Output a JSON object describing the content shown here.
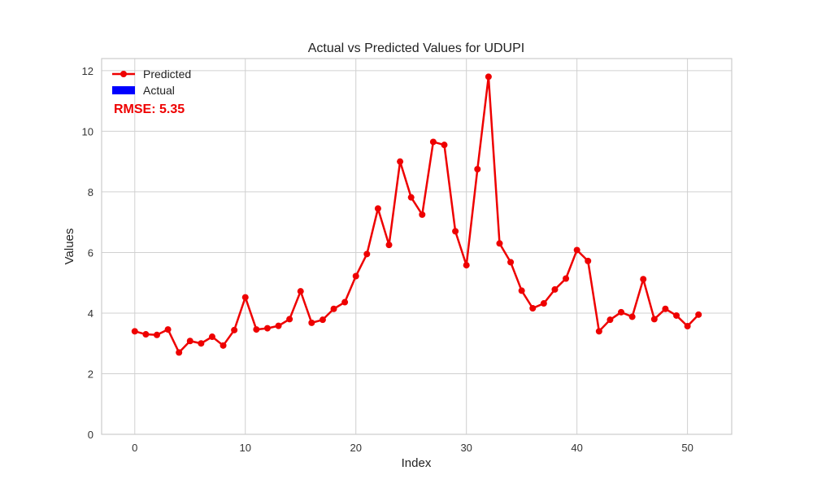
{
  "chart_data": {
    "type": "line",
    "title": "Actual vs Predicted Values for UDUPI",
    "xlabel": "Index",
    "ylabel": "Values",
    "xlim": [
      -3,
      54
    ],
    "ylim": [
      0,
      12.4
    ],
    "xticks": [
      0,
      10,
      20,
      30,
      40,
      50
    ],
    "yticks": [
      0,
      2,
      4,
      6,
      8,
      10,
      12
    ],
    "grid": true,
    "legend_position": "top-left",
    "series": [
      {
        "name": "Predicted",
        "color": "#ee0000",
        "marker": "circle",
        "x": [
          0,
          1,
          2,
          3,
          4,
          5,
          6,
          7,
          8,
          9,
          10,
          11,
          12,
          13,
          14,
          15,
          16,
          17,
          18,
          19,
          20,
          21,
          22,
          23,
          24,
          25,
          26,
          27,
          28,
          29,
          30,
          31,
          32,
          33,
          34,
          35,
          36,
          37,
          38,
          39,
          40,
          41,
          42,
          43,
          44,
          45,
          46,
          47,
          48,
          49,
          50,
          51
        ],
        "values": [
          3.4,
          3.3,
          3.28,
          3.46,
          2.7,
          3.08,
          3.0,
          3.22,
          2.93,
          3.44,
          4.52,
          3.46,
          3.5,
          3.58,
          3.8,
          4.72,
          3.68,
          3.78,
          4.14,
          4.36,
          5.22,
          5.95,
          7.45,
          6.25,
          9.0,
          7.82,
          7.25,
          9.65,
          9.55,
          6.7,
          5.58,
          8.75,
          11.8,
          6.3,
          5.68,
          4.74,
          4.16,
          4.32,
          4.78,
          5.14,
          6.08,
          5.72,
          3.4,
          3.78,
          4.03,
          3.88,
          5.12,
          3.8,
          4.14,
          3.92,
          3.57,
          3.95
        ]
      },
      {
        "name": "Actual",
        "color": "#0000ff",
        "marker": "bar",
        "x": [],
        "values": []
      }
    ],
    "annotation": {
      "text": "RMSE: 5.35",
      "color": "#ee0000"
    }
  }
}
